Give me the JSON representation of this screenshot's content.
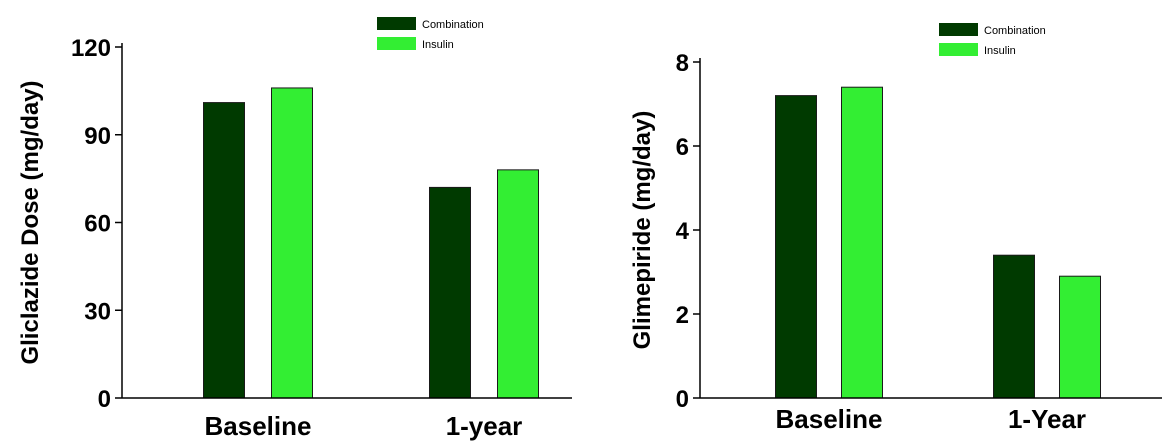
{
  "chart_data": [
    {
      "type": "bar",
      "title": "",
      "xlabel": "",
      "ylabel": "Gliclazide Dose (mg/day)",
      "categories": [
        "Baseline",
        "1-year"
      ],
      "series": [
        {
          "name": "Combination",
          "values": [
            101,
            72
          ]
        },
        {
          "name": "Insulin",
          "values": [
            106,
            78
          ]
        }
      ],
      "ylim": [
        0,
        120
      ],
      "yticks": [
        0,
        30,
        60,
        90,
        120
      ],
      "grid": false,
      "legend_position": "top-right"
    },
    {
      "type": "bar",
      "title": "",
      "xlabel": "",
      "ylabel": "Glimepiride (mg/day)",
      "categories": [
        "Baseline",
        "1-Year"
      ],
      "series": [
        {
          "name": "Combination",
          "values": [
            7.2,
            3.4
          ]
        },
        {
          "name": "Insulin",
          "values": [
            7.4,
            2.9
          ]
        }
      ],
      "ylim": [
        0,
        8
      ],
      "yticks": [
        0,
        2,
        4,
        6,
        8
      ],
      "grid": false,
      "legend_position": "top-right"
    }
  ],
  "colors": {
    "combination": "#003a00",
    "insulin": "#33ee33",
    "axis": "#000000"
  }
}
